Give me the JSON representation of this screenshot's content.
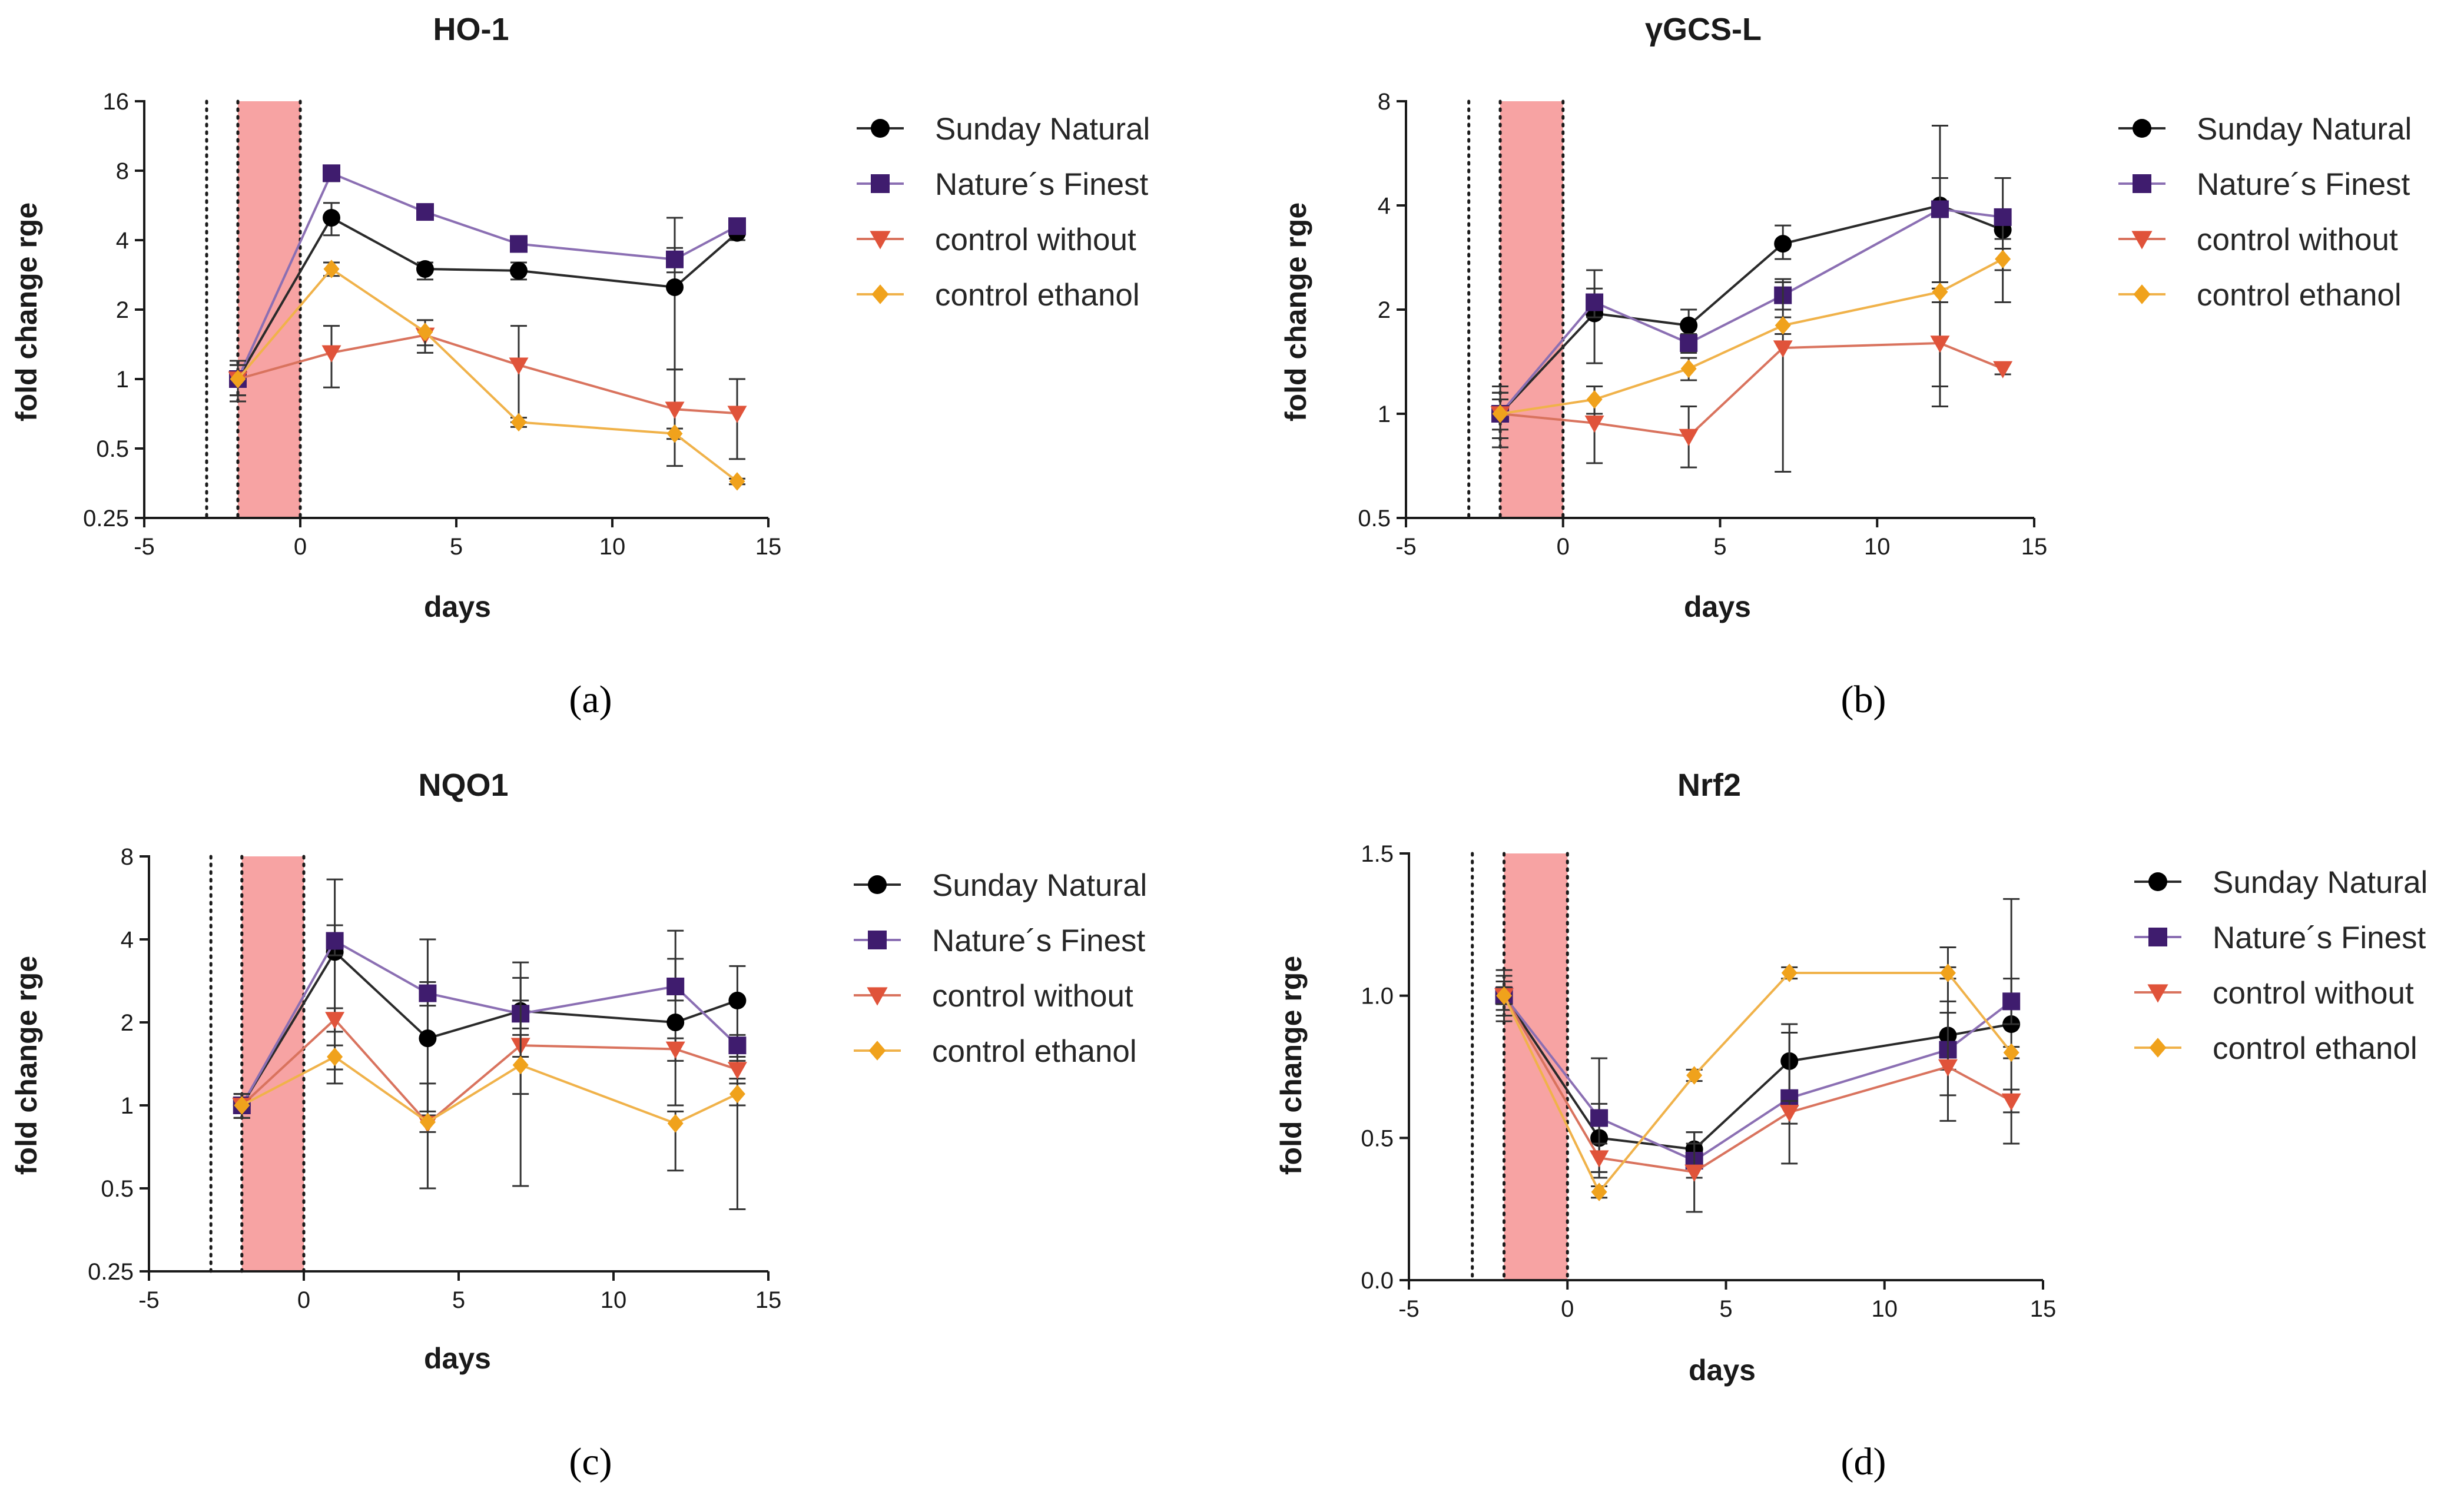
{
  "series_styles": [
    {
      "name": "Sunday Natural",
      "color": "#000000",
      "line": "#2a2a2a",
      "marker": "circle"
    },
    {
      "name": "Nature´s Finest",
      "color": "#3f1c6e",
      "line": "#8b6fb3",
      "marker": "square"
    },
    {
      "name": "control without",
      "color": "#e0533a",
      "line": "#d9735e",
      "marker": "triangle-down"
    },
    {
      "name": "control ethanol",
      "color": "#f0a21c",
      "line": "#f0b24a",
      "marker": "diamond"
    }
  ],
  "chart_data": [
    {
      "id": "a",
      "panel_label": "(a)",
      "type": "line",
      "title": "HO-1",
      "xlabel": "days",
      "ylabel": "fold change rge",
      "yscale": "log2",
      "xlim": [
        -5,
        15
      ],
      "ylim": [
        0.25,
        16
      ],
      "xticks": [
        -5,
        0,
        5,
        10,
        15
      ],
      "yticks": [
        0.25,
        0.5,
        1,
        2,
        4,
        8,
        16
      ],
      "ytick_labels": [
        "0.25",
        "0.5",
        "1",
        "2",
        "4",
        "8",
        "16"
      ],
      "shaded_region": [
        -2,
        0
      ],
      "dotted_lines": [
        -3,
        -2,
        0
      ],
      "legend": [
        "Sunday Natural",
        "Nature´s Finest",
        "control without",
        "control ethanol"
      ],
      "x": [
        -2,
        1,
        4,
        7,
        12,
        14
      ],
      "series": [
        {
          "name": "Sunday Natural",
          "values": [
            1.0,
            5.0,
            3.0,
            2.95,
            2.5,
            4.3
          ],
          "err_low": [
            0.8,
            4.2,
            2.7,
            2.7,
            1.1,
            4.0
          ],
          "err_high": [
            1.2,
            5.8,
            3.2,
            3.2,
            5.0,
            4.6
          ]
        },
        {
          "name": "Nature´s Finest",
          "values": [
            1.0,
            7.8,
            5.3,
            3.85,
            3.3,
            4.6
          ],
          "err_low": [
            0.85,
            7.2,
            5.0,
            3.6,
            2.9,
            4.4
          ],
          "err_high": [
            1.15,
            8.2,
            5.6,
            4.1,
            3.7,
            4.8
          ]
        },
        {
          "name": "control without",
          "values": [
            1.0,
            1.3,
            1.55,
            1.15,
            0.74,
            0.71
          ],
          "err_low": [
            0.8,
            0.92,
            1.3,
            0.65,
            0.42,
            0.45
          ],
          "err_high": [
            1.2,
            1.7,
            1.8,
            1.7,
            1.1,
            1.0
          ]
        },
        {
          "name": "control ethanol",
          "values": [
            1.0,
            3.0,
            1.6,
            0.65,
            0.58,
            0.36
          ],
          "err_low": [
            0.85,
            2.8,
            1.4,
            0.62,
            0.55,
            0.35
          ],
          "err_high": [
            1.15,
            3.2,
            1.8,
            0.68,
            0.61,
            0.37
          ]
        }
      ]
    },
    {
      "id": "b",
      "panel_label": "(b)",
      "type": "line",
      "title": "γGCS-L",
      "xlabel": "days",
      "ylabel": "fold change rge",
      "yscale": "log2",
      "xlim": [
        -5,
        15
      ],
      "ylim": [
        0.5,
        8
      ],
      "xticks": [
        -5,
        0,
        5,
        10,
        15
      ],
      "yticks": [
        0.5,
        1,
        2,
        4,
        8
      ],
      "ytick_labels": [
        "0.5",
        "1",
        "2",
        "4",
        "8"
      ],
      "shaded_region": [
        -2,
        0
      ],
      "dotted_lines": [
        -3,
        -2,
        0
      ],
      "legend": [
        "Sunday Natural",
        "Nature´s Finest",
        "control without",
        "control ethanol"
      ],
      "x": [
        -2,
        1,
        4,
        7,
        12,
        14
      ],
      "series": [
        {
          "name": "Sunday Natural",
          "values": [
            1.0,
            1.95,
            1.8,
            3.1,
            4.0,
            3.4
          ],
          "err_low": [
            0.85,
            1.4,
            1.6,
            2.8,
            1.05,
            3.2
          ],
          "err_high": [
            1.15,
            2.6,
            2.0,
            3.5,
            6.8,
            3.6
          ]
        },
        {
          "name": "Nature´s Finest",
          "values": [
            1.0,
            2.1,
            1.6,
            2.2,
            3.9,
            3.7
          ],
          "err_low": [
            0.85,
            1.9,
            1.5,
            2.0,
            1.2,
            2.1
          ],
          "err_high": [
            1.15,
            2.3,
            1.7,
            2.45,
            4.8,
            4.8
          ]
        },
        {
          "name": "control without",
          "values": [
            1.0,
            0.94,
            0.86,
            1.55,
            1.6,
            1.35
          ],
          "err_low": [
            0.8,
            0.72,
            0.7,
            0.68,
            1.05,
            1.3
          ],
          "err_high": [
            1.2,
            1.2,
            1.05,
            2.4,
            2.3,
            1.4
          ]
        },
        {
          "name": "control ethanol",
          "values": [
            1.0,
            1.1,
            1.35,
            1.8,
            2.25,
            2.8
          ],
          "err_low": [
            0.9,
            1.0,
            1.25,
            1.7,
            2.1,
            2.6
          ],
          "err_high": [
            1.1,
            1.2,
            1.45,
            1.9,
            2.4,
            3.0
          ]
        }
      ]
    },
    {
      "id": "c",
      "panel_label": "(c)",
      "type": "line",
      "title": "NQO1",
      "xlabel": "days",
      "ylabel": "fold change rge",
      "yscale": "log2",
      "xlim": [
        -5,
        15
      ],
      "ylim": [
        0.25,
        8
      ],
      "xticks": [
        -5,
        0,
        5,
        10,
        15
      ],
      "yticks": [
        0.25,
        0.5,
        1,
        2,
        4,
        8
      ],
      "ytick_labels": [
        "0.25",
        "0.5",
        "1",
        "2",
        "4",
        "8"
      ],
      "shaded_region": [
        -2,
        0
      ],
      "dotted_lines": [
        -3,
        -2,
        0
      ],
      "legend": [
        "Sunday Natural",
        "Nature´s Finest",
        "control without",
        "control ethanol"
      ],
      "x": [
        -2,
        1,
        4,
        7,
        12,
        14
      ],
      "series": [
        {
          "name": "Sunday Natural",
          "values": [
            1.0,
            3.6,
            1.75,
            2.2,
            2.0,
            2.4
          ],
          "err_low": [
            0.9,
            1.2,
            0.95,
            1.1,
            1.0,
            0.42
          ],
          "err_high": [
            1.1,
            6.6,
            4.0,
            3.3,
            3.4,
            3.2
          ]
        },
        {
          "name": "Nature´s Finest",
          "values": [
            1.0,
            3.95,
            2.55,
            2.15,
            2.7,
            1.65
          ],
          "err_low": [
            0.9,
            3.5,
            2.3,
            1.9,
            2.4,
            1.5
          ],
          "err_high": [
            1.1,
            4.5,
            2.8,
            2.4,
            4.3,
            1.8
          ]
        },
        {
          "name": "control without",
          "values": [
            1.0,
            2.05,
            0.86,
            1.65,
            1.6,
            1.35
          ],
          "err_low": [
            0.9,
            1.85,
            0.8,
            1.5,
            1.45,
            1.25
          ],
          "err_high": [
            1.1,
            2.25,
            0.92,
            1.8,
            1.75,
            1.45
          ]
        },
        {
          "name": "control ethanol",
          "values": [
            1.0,
            1.5,
            0.87,
            1.4,
            0.86,
            1.1
          ],
          "err_low": [
            0.9,
            1.35,
            0.5,
            0.51,
            0.58,
            1.0
          ],
          "err_high": [
            1.1,
            1.65,
            1.2,
            2.9,
            0.95,
            1.2
          ]
        }
      ]
    },
    {
      "id": "d",
      "panel_label": "(d)",
      "type": "line",
      "title": "Nrf2",
      "xlabel": "days",
      "ylabel": "fold change rge",
      "yscale": "linear",
      "xlim": [
        -5,
        15
      ],
      "ylim": [
        0,
        1.5
      ],
      "xticks": [
        -5,
        0,
        5,
        10,
        15
      ],
      "yticks": [
        0,
        0.5,
        1.0,
        1.5
      ],
      "ytick_labels": [
        "0.0",
        "0.5",
        "1.0",
        "1.5"
      ],
      "shaded_region": [
        -2,
        0
      ],
      "dotted_lines": [
        -3,
        -2,
        0
      ],
      "legend": [
        "Sunday Natural",
        "Nature´s Finest",
        "control without",
        "control ethanol"
      ],
      "x": [
        -2,
        1,
        4,
        7,
        12,
        14
      ],
      "series": [
        {
          "name": "Sunday Natural",
          "values": [
            1.0,
            0.5,
            0.46,
            0.77,
            0.86,
            0.9
          ],
          "err_low": [
            0.91,
            0.38,
            0.4,
            0.64,
            0.74,
            0.48
          ],
          "err_high": [
            1.09,
            0.62,
            0.52,
            0.9,
            0.98,
            1.34
          ]
        },
        {
          "name": "Nature´s Finest",
          "values": [
            1.0,
            0.57,
            0.42,
            0.64,
            0.81,
            0.98
          ],
          "err_low": [
            0.93,
            0.36,
            0.36,
            0.41,
            0.65,
            0.9
          ],
          "err_high": [
            1.07,
            0.78,
            0.48,
            0.87,
            1.17,
            1.06
          ]
        },
        {
          "name": "control without",
          "values": [
            1.0,
            0.43,
            0.38,
            0.59,
            0.75,
            0.63
          ],
          "err_low": [
            0.95,
            0.38,
            0.24,
            0.55,
            0.56,
            0.59
          ],
          "err_high": [
            1.05,
            0.48,
            0.52,
            0.63,
            0.94,
            0.67
          ]
        },
        {
          "name": "control ethanol",
          "values": [
            1.0,
            0.31,
            0.72,
            1.08,
            1.08,
            0.8
          ],
          "err_low": [
            0.97,
            0.29,
            0.7,
            1.06,
            1.06,
            0.78
          ],
          "err_high": [
            1.03,
            0.33,
            0.74,
            1.1,
            1.1,
            0.82
          ]
        }
      ]
    }
  ]
}
